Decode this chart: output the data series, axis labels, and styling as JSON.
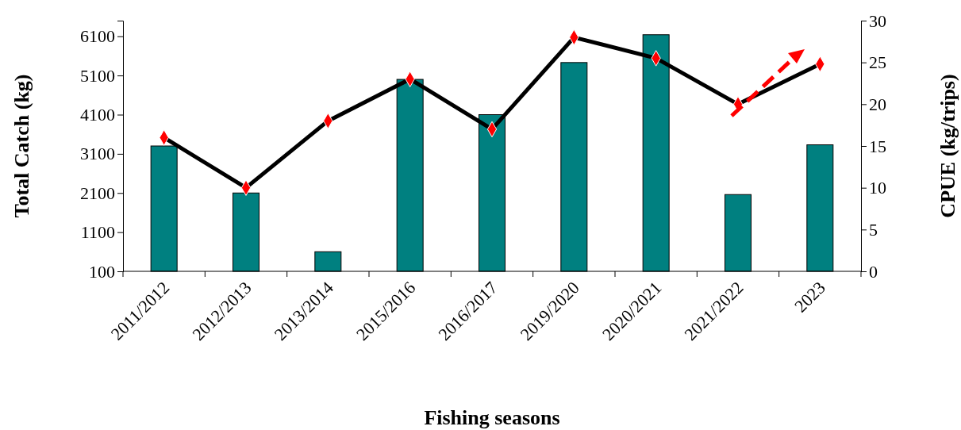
{
  "chart_data": {
    "type": "bar",
    "xlabel": "Fishing seasons",
    "ylabel": "Total Catch (kg)",
    "y2label": "CPUE (kg/trips)",
    "categories": [
      "2011/2012",
      "2012/2013",
      "2013/2014",
      "2015/2016",
      "2016/2017",
      "2019/2020",
      "2020/2021",
      "2021/2022",
      "2023"
    ],
    "series": [
      {
        "color": "#008080",
        "values": [
          3300,
          2100,
          600,
          5000,
          4100,
          5430,
          6140,
          2060,
          3330
        ]
      },
      {
        "type": "line",
        "axis": "y2",
        "color": "#000000",
        "values": [
          16,
          10,
          18,
          23,
          17,
          28,
          25.5,
          20,
          24.8
        ]
      }
    ],
    "ylim": [
      100,
      6500
    ],
    "yticks": [
      100,
      1100,
      2100,
      3100,
      4100,
      5100,
      6100
    ],
    "y2lim": [
      0,
      30
    ],
    "y2ticks": [
      0,
      5,
      10,
      15,
      20,
      25,
      30
    ],
    "marker": "diamond",
    "grid": false
  }
}
